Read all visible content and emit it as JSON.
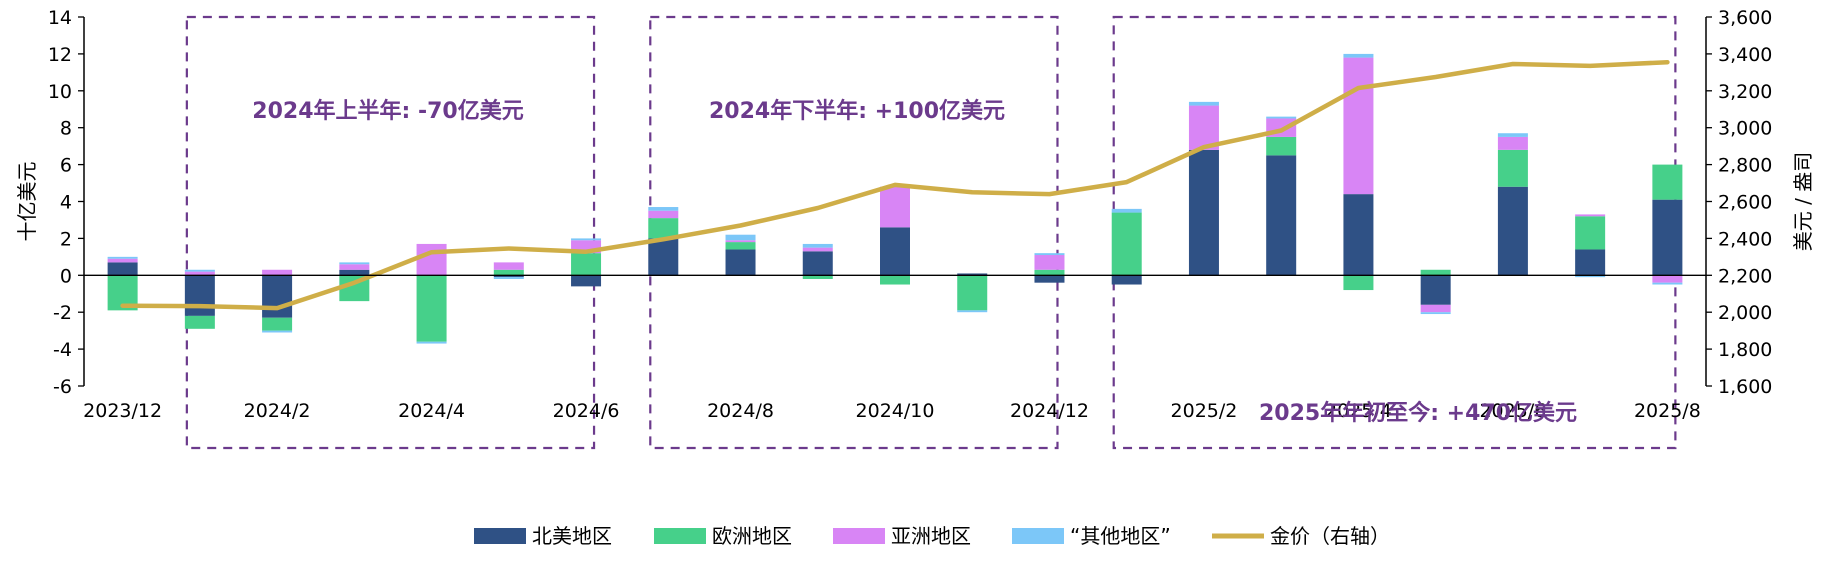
{
  "chart_data": {
    "type": "bar",
    "stacked": true,
    "categories": [
      "2023/12",
      "2024/1",
      "2024/2",
      "2024/3",
      "2024/4",
      "2024/5",
      "2024/6",
      "2024/7",
      "2024/8",
      "2024/9",
      "2024/10",
      "2024/11",
      "2024/12",
      "2025/1",
      "2025/2",
      "2025/3",
      "2025/4",
      "2025/5",
      "2025/6",
      "2025/7",
      "2025/8"
    ],
    "x_tick_labels": [
      "2023/12",
      "2024/2",
      "2024/4",
      "2024/6",
      "2024/8",
      "2024/10",
      "2024/12",
      "2025/2",
      "2025/4",
      "2025/6",
      "2025/8"
    ],
    "ylabel": "十亿美元",
    "y2label": "美元 / 盎司",
    "ylim": [
      -6,
      14
    ],
    "yticks": [
      -6,
      -4,
      -2,
      0,
      2,
      4,
      6,
      8,
      10,
      12,
      14
    ],
    "y2lim": [
      1600,
      3600
    ],
    "y2ticks": [
      "1,600",
      "1,800",
      "2,000",
      "2,200",
      "2,400",
      "2,600",
      "2,800",
      "3,000",
      "3,200",
      "3,400",
      "3,600"
    ],
    "series": [
      {
        "name": "北美地区",
        "color": "#2f5185",
        "values": [
          0.7,
          -2.2,
          -2.3,
          0.3,
          0,
          -0.1,
          -0.6,
          2.0,
          1.4,
          1.3,
          2.6,
          0.1,
          -0.4,
          -0.5,
          6.8,
          6.5,
          4.4,
          -1.6,
          4.8,
          1.4,
          4.1
        ]
      },
      {
        "name": "欧洲地区",
        "color": "#46d08a",
        "values": [
          -1.9,
          -0.7,
          -0.7,
          -1.4,
          -3.6,
          0.3,
          1.2,
          1.1,
          0.4,
          -0.2,
          -0.5,
          -1.9,
          0.3,
          3.4,
          0,
          1.0,
          -0.8,
          0.3,
          2.0,
          1.8,
          1.9
        ]
      },
      {
        "name": "亚洲地区",
        "color": "#d885f5",
        "values": [
          0.2,
          0.2,
          0.3,
          0.3,
          1.7,
          0.4,
          0.7,
          0.4,
          0.1,
          0.2,
          2.2,
          0,
          0.8,
          0,
          2.4,
          1.0,
          7.4,
          -0.4,
          0.7,
          0.1,
          -0.4
        ]
      },
      {
        "name": "“其他地区”",
        "color": "#7cc7f8",
        "values": [
          0.1,
          0.1,
          -0.1,
          0.1,
          -0.1,
          -0.1,
          0.1,
          0.2,
          0.3,
          0.2,
          0,
          -0.1,
          0.1,
          0.2,
          0.2,
          0.1,
          0.2,
          -0.1,
          0.2,
          -0.1,
          -0.1
        ]
      }
    ],
    "line_series": {
      "name": "金价（右轴）",
      "color": "#cfae48",
      "axis": "right",
      "values": [
        2035,
        2033,
        2022,
        2160,
        2325,
        2345,
        2328,
        2395,
        2470,
        2565,
        2690,
        2650,
        2640,
        2705,
        2895,
        2985,
        3215,
        3275,
        3345,
        3335,
        3355
      ]
    },
    "annotations": [
      "2024年上半年: -70亿美元",
      "2024年下半年: +100亿美元",
      "2025年年初至今: +470亿美元"
    ],
    "legend_position": "bottom",
    "grid": false
  }
}
